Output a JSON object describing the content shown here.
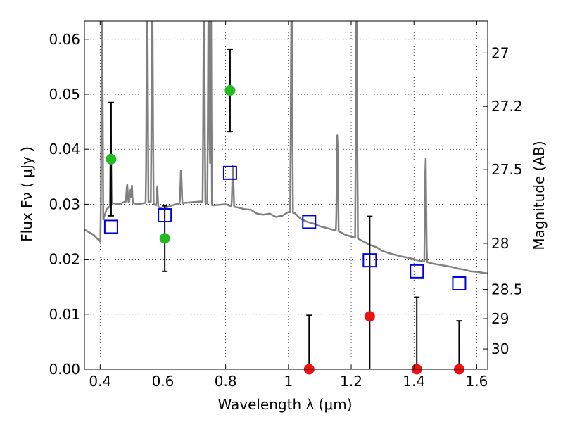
{
  "chart_data": {
    "type": "scatter",
    "xlabel": "Wavelength  λ (μm)",
    "ylabel": "Flux  Fν  ( μJy )",
    "y2label": "Magnitude (AB)",
    "xlim": [
      0.35,
      1.635
    ],
    "ylim": [
      0.0,
      0.0633
    ],
    "x_ticks": [
      0.4,
      0.6,
      0.8,
      1.0,
      1.2,
      1.4,
      1.6
    ],
    "x_tick_labels": [
      "0.4",
      "0.6",
      "0.8",
      "1",
      "1.2",
      "1.4",
      "1.6"
    ],
    "y_ticks": [
      0.0,
      0.01,
      0.02,
      0.03,
      0.04,
      0.05,
      0.06
    ],
    "y_tick_labels": [
      "0.00",
      "0.01",
      "0.02",
      "0.03",
      "0.04",
      "0.05",
      "0.06"
    ],
    "y2_ticks": [
      {
        "label": "27",
        "flux": 0.0575
      },
      {
        "label": "27.2",
        "flux": 0.0478
      },
      {
        "label": "27.5",
        "flux": 0.0363
      },
      {
        "label": "28",
        "flux": 0.0229
      },
      {
        "label": "28.5",
        "flux": 0.0145
      },
      {
        "label": "29",
        "flux": 0.0092
      },
      {
        "label": "30",
        "flux": 0.0037
      }
    ],
    "grid": true,
    "colors": {
      "template": "#808080",
      "detection": "#22bb22",
      "nondetection": "#ee1111",
      "model": "#0000dd",
      "errorbar": "#000000"
    },
    "series": [
      {
        "points": [
          {
            "x": 0.435,
            "y": 0.0382,
            "ylow": 0.0279,
            "yhigh": 0.0485
          },
          {
            "x": 0.606,
            "y": 0.0238,
            "ylow": 0.0178,
            "yhigh": 0.0297
          },
          {
            "x": 0.814,
            "y": 0.0507,
            "ylow": 0.0432,
            "yhigh": 0.0582
          }
        ]
      },
      {
        "points": [
          {
            "x": 1.066,
            "y": 0.0,
            "ylow": 0.0,
            "yhigh": 0.0098
          },
          {
            "x": 1.259,
            "y": 0.0096,
            "ylow": 0.0,
            "yhigh": 0.0278
          },
          {
            "x": 1.409,
            "y": 0.0,
            "ylow": 0.0,
            "yhigh": 0.0131
          },
          {
            "x": 1.544,
            "y": 0.0,
            "ylow": 0.0,
            "yhigh": 0.0088
          }
        ]
      },
      {
        "points": [
          {
            "x": 0.435,
            "y": 0.0259
          },
          {
            "x": 0.606,
            "y": 0.028
          },
          {
            "x": 0.814,
            "y": 0.0357
          },
          {
            "x": 1.066,
            "y": 0.0268
          },
          {
            "x": 1.259,
            "y": 0.0198
          },
          {
            "x": 1.409,
            "y": 0.0178
          },
          {
            "x": 1.544,
            "y": 0.0156
          }
        ]
      },
      {
        "continuum": [
          [
            0.35,
            0.0254
          ],
          [
            0.38,
            0.0244
          ],
          [
            0.4,
            0.0232
          ],
          [
            0.405,
            0.0263
          ],
          [
            0.42,
            0.029
          ],
          [
            0.44,
            0.0302
          ],
          [
            0.46,
            0.03
          ],
          [
            0.48,
            0.0305
          ],
          [
            0.5,
            0.0303
          ],
          [
            0.52,
            0.03
          ],
          [
            0.54,
            0.0302
          ],
          [
            0.56,
            0.0305
          ],
          [
            0.58,
            0.0297
          ],
          [
            0.6,
            0.0291
          ],
          [
            0.62,
            0.0296
          ],
          [
            0.64,
            0.03
          ],
          [
            0.66,
            0.0302
          ],
          [
            0.7,
            0.0304
          ],
          [
            0.72,
            0.0305
          ],
          [
            0.76,
            0.0298
          ],
          [
            0.8,
            0.03
          ],
          [
            0.82,
            0.0296
          ],
          [
            0.84,
            0.0294
          ],
          [
            0.86,
            0.0291
          ],
          [
            0.88,
            0.029
          ],
          [
            0.9,
            0.0283
          ],
          [
            0.92,
            0.0281
          ],
          [
            0.94,
            0.0283
          ],
          [
            0.96,
            0.0277
          ],
          [
            0.98,
            0.0279
          ],
          [
            1.0,
            0.0286
          ],
          [
            1.02,
            0.0284
          ],
          [
            1.04,
            0.0273
          ],
          [
            1.06,
            0.0268
          ],
          [
            1.08,
            0.0265
          ],
          [
            1.1,
            0.026
          ],
          [
            1.12,
            0.0257
          ],
          [
            1.14,
            0.0254
          ],
          [
            1.16,
            0.0251
          ],
          [
            1.18,
            0.0245
          ],
          [
            1.2,
            0.0241
          ],
          [
            1.22,
            0.0238
          ],
          [
            1.24,
            0.0232
          ],
          [
            1.26,
            0.0226
          ],
          [
            1.28,
            0.0222
          ],
          [
            1.3,
            0.0215
          ],
          [
            1.32,
            0.0211
          ],
          [
            1.34,
            0.0208
          ],
          [
            1.36,
            0.0205
          ],
          [
            1.38,
            0.0203
          ],
          [
            1.4,
            0.02
          ],
          [
            1.42,
            0.0197
          ],
          [
            1.44,
            0.0195
          ],
          [
            1.46,
            0.0192
          ],
          [
            1.48,
            0.019
          ],
          [
            1.5,
            0.0188
          ],
          [
            1.52,
            0.0186
          ],
          [
            1.54,
            0.0183
          ],
          [
            1.56,
            0.0181
          ],
          [
            1.58,
            0.0178
          ],
          [
            1.6,
            0.0177
          ],
          [
            1.635,
            0.0174
          ]
        ],
        "lines": [
          {
            "x": 0.406,
            "peak": 0.075,
            "width": 0.004
          },
          {
            "x": 0.434,
            "peak": 0.043,
            "width": 0.003
          },
          {
            "x": 0.486,
            "peak": 0.034,
            "width": 0.004
          },
          {
            "x": 0.496,
            "peak": 0.033,
            "width": 0.003
          },
          {
            "x": 0.501,
            "peak": 0.034,
            "width": 0.003
          },
          {
            "x": 0.55,
            "peak": 0.075,
            "width": 0.004
          },
          {
            "x": 0.566,
            "peak": 0.075,
            "width": 0.004
          },
          {
            "x": 0.582,
            "peak": 0.034,
            "width": 0.003
          },
          {
            "x": 0.658,
            "peak": 0.037,
            "width": 0.004
          },
          {
            "x": 0.731,
            "peak": 0.075,
            "width": 0.004
          },
          {
            "x": 0.746,
            "peak": 0.075,
            "width": 0.004
          },
          {
            "x": 0.753,
            "peak": 0.075,
            "width": 0.003
          },
          {
            "x": 0.823,
            "peak": 0.038,
            "width": 0.004
          },
          {
            "x": 1.01,
            "peak": 0.075,
            "width": 0.004
          },
          {
            "x": 1.156,
            "peak": 0.045,
            "width": 0.004
          },
          {
            "x": 1.217,
            "peak": 0.075,
            "width": 0.004
          },
          {
            "x": 1.437,
            "peak": 0.041,
            "width": 0.004
          }
        ]
      }
    ]
  }
}
